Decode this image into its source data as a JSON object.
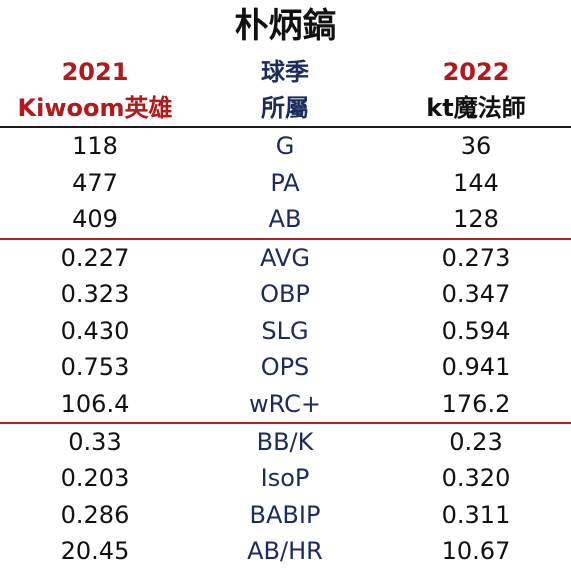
{
  "title": "朴炳鎬",
  "header": {
    "left_year": "2021",
    "left_team": "Kiwoom英雄",
    "mid_top": "球季",
    "mid_bottom": "所屬",
    "right_year": "2022",
    "right_team": "kt魔法師"
  },
  "colors": {
    "red": "#b3181b",
    "navy": "#1d2b5c",
    "black": "#111111"
  },
  "rows": [
    {
      "stat": "G",
      "v2021": "118",
      "v2022": "36"
    },
    {
      "stat": "PA",
      "v2021": "477",
      "v2022": "144"
    },
    {
      "stat": "AB",
      "v2021": "409",
      "v2022": "128"
    },
    {
      "stat": "AVG",
      "v2021": "0.227",
      "v2022": "0.273"
    },
    {
      "stat": "OBP",
      "v2021": "0.323",
      "v2022": "0.347"
    },
    {
      "stat": "SLG",
      "v2021": "0.430",
      "v2022": "0.594"
    },
    {
      "stat": "OPS",
      "v2021": "0.753",
      "v2022": "0.941"
    },
    {
      "stat": "wRC+",
      "v2021": "106.4",
      "v2022": "176.2"
    },
    {
      "stat": "BB/K",
      "v2021": "0.33",
      "v2022": "0.23"
    },
    {
      "stat": "IsoP",
      "v2021": "0.203",
      "v2022": "0.320"
    },
    {
      "stat": "BABIP",
      "v2021": "0.286",
      "v2022": "0.311"
    },
    {
      "stat": "AB/HR",
      "v2021": "20.45",
      "v2022": "10.67"
    }
  ]
}
